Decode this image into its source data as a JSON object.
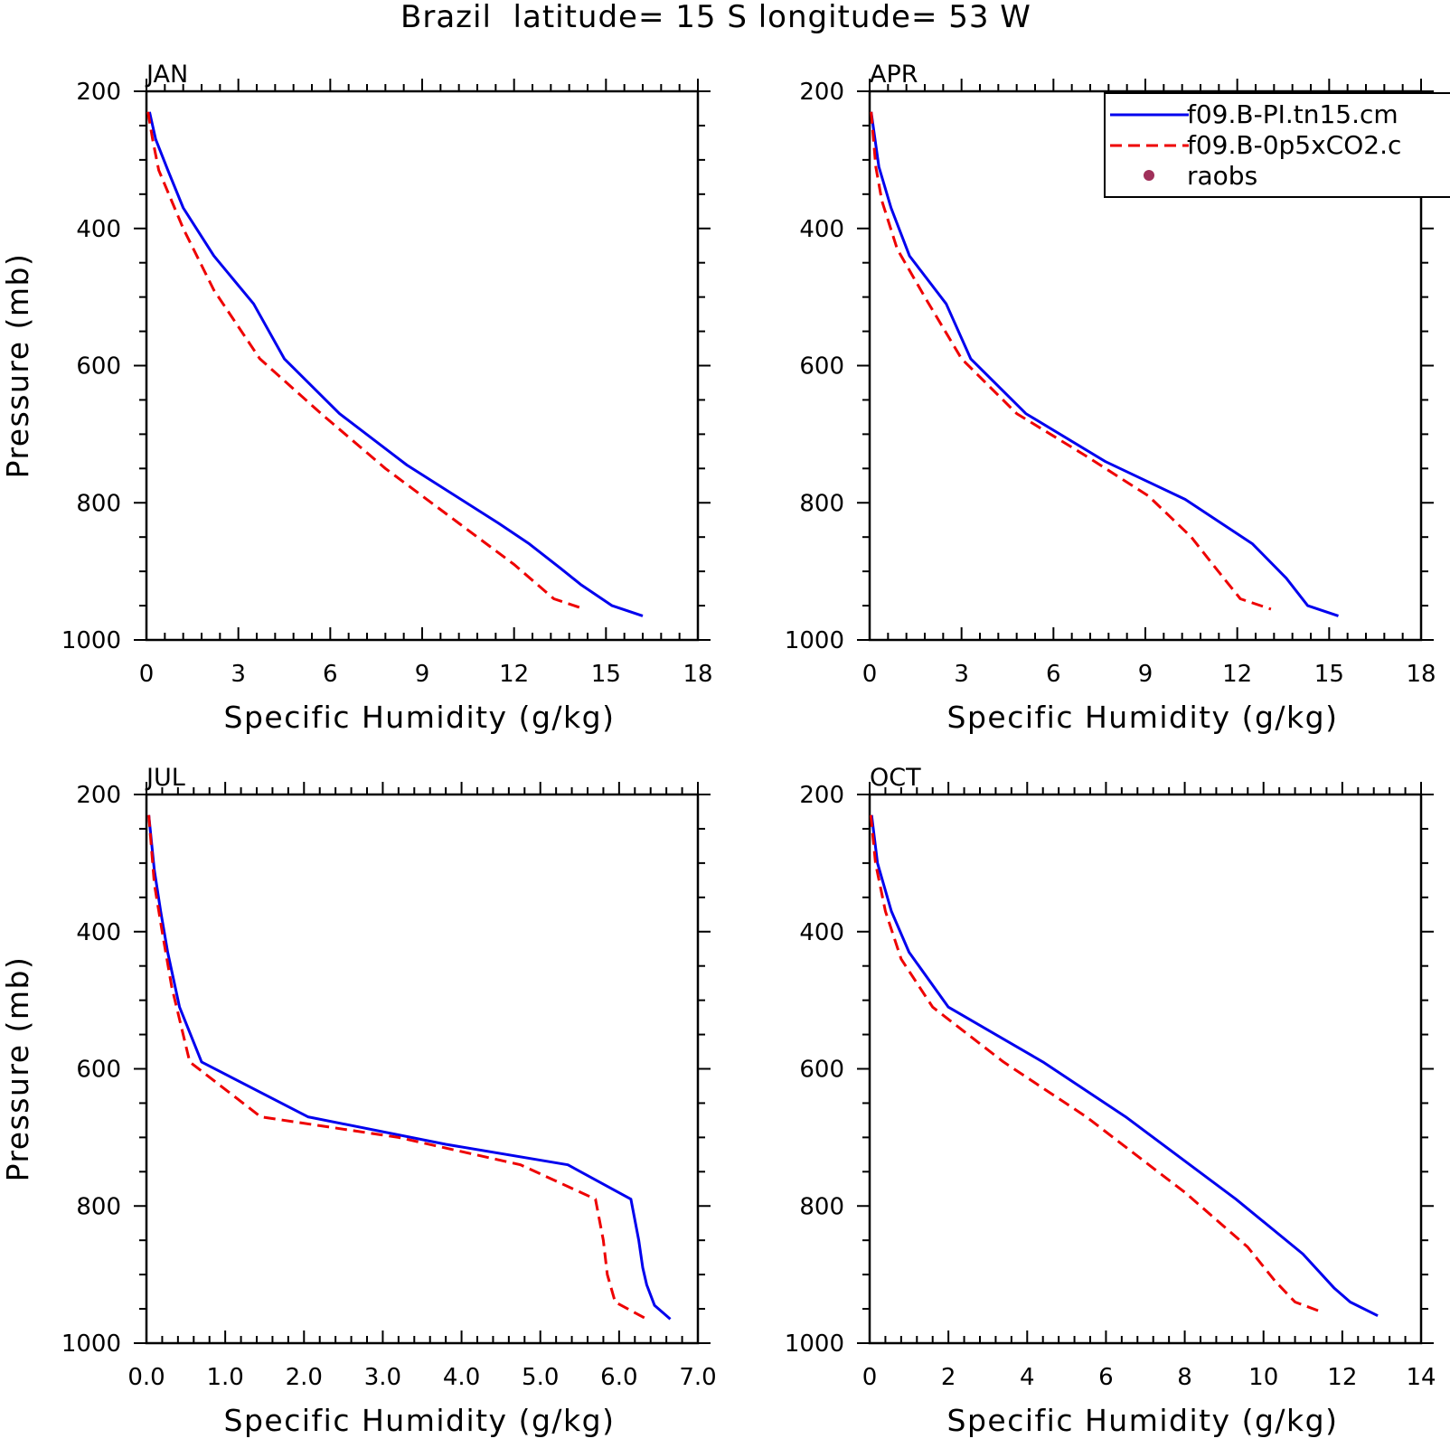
{
  "figure_title": "Brazil  latitude= 15 S longitude= 53 W",
  "legend": {
    "entries": [
      {
        "label": "f09.B-PI.tn15.cm",
        "color": "#0000ee",
        "style": "solid"
      },
      {
        "label": "f09.B-0p5xCO2.c",
        "color": "#ee0000",
        "style": "dashed"
      },
      {
        "label": "raobs",
        "color": "#a0305a",
        "style": "marker"
      }
    ]
  },
  "chart_data": [
    {
      "type": "line",
      "title": "JAN",
      "xlabel": "Specific Humidity (g/kg)",
      "ylabel": "Pressure (mb)",
      "xlim": [
        0,
        18
      ],
      "ylim": [
        200,
        1000
      ],
      "y_inverted": true,
      "xticks": [
        "0",
        "3",
        "6",
        "9",
        "12",
        "15",
        "18"
      ],
      "yticks": [
        "200",
        "400",
        "600",
        "800",
        "1000"
      ],
      "series": [
        {
          "name": "f09.B-PI.tn15.cm",
          "points": [
            [
              0.1,
              230
            ],
            [
              0.3,
              270
            ],
            [
              0.7,
              315
            ],
            [
              1.2,
              370
            ],
            [
              2.2,
              440
            ],
            [
              3.5,
              510
            ],
            [
              4.5,
              590
            ],
            [
              6.3,
              670
            ],
            [
              8.5,
              745
            ],
            [
              11.5,
              830
            ],
            [
              12.5,
              860
            ],
            [
              13.5,
              895
            ],
            [
              14.2,
              920
            ],
            [
              15.2,
              950
            ],
            [
              16.2,
              965
            ]
          ]
        },
        {
          "name": "f09.B-0p5xCO2.c",
          "points": [
            [
              0.05,
              230
            ],
            [
              0.2,
              270
            ],
            [
              0.4,
              315
            ],
            [
              1.2,
              400
            ],
            [
              2.2,
              490
            ],
            [
              3.7,
              590
            ],
            [
              5.7,
              670
            ],
            [
              7.8,
              750
            ],
            [
              10.2,
              830
            ],
            [
              12.0,
              890
            ],
            [
              13.3,
              940
            ],
            [
              14.3,
              955
            ]
          ]
        }
      ]
    },
    {
      "type": "line",
      "title": "APR",
      "xlabel": "Specific Humidity (g/kg)",
      "ylabel": "",
      "xlim": [
        0,
        18
      ],
      "ylim": [
        200,
        1000
      ],
      "y_inverted": true,
      "xticks": [
        "0",
        "3",
        "6",
        "9",
        "12",
        "15",
        "18"
      ],
      "yticks": [
        "200",
        "400",
        "600",
        "800",
        "1000"
      ],
      "series": [
        {
          "name": "f09.B-PI.tn15.cm",
          "points": [
            [
              0.05,
              230
            ],
            [
              0.3,
              310
            ],
            [
              0.7,
              370
            ],
            [
              1.3,
              440
            ],
            [
              2.5,
              510
            ],
            [
              3.3,
              590
            ],
            [
              5.1,
              670
            ],
            [
              7.7,
              740
            ],
            [
              10.3,
              795
            ],
            [
              12.5,
              860
            ],
            [
              13.6,
              910
            ],
            [
              14.3,
              950
            ],
            [
              15.3,
              965
            ]
          ]
        },
        {
          "name": "f09.B-0p5xCO2.c",
          "points": [
            [
              0.05,
              230
            ],
            [
              0.2,
              310
            ],
            [
              0.4,
              360
            ],
            [
              0.9,
              430
            ],
            [
              1.8,
              500
            ],
            [
              3.0,
              590
            ],
            [
              4.8,
              670
            ],
            [
              7.0,
              730
            ],
            [
              9.1,
              790
            ],
            [
              10.5,
              850
            ],
            [
              11.2,
              890
            ],
            [
              12.1,
              940
            ],
            [
              13.1,
              955
            ]
          ]
        }
      ]
    },
    {
      "type": "line",
      "title": "JUL",
      "xlabel": "Specific Humidity (g/kg)",
      "ylabel": "Pressure (mb)",
      "xlim": [
        0,
        7
      ],
      "ylim": [
        200,
        1000
      ],
      "y_inverted": true,
      "xticks": [
        "0.0",
        "1.0",
        "2.0",
        "3.0",
        "4.0",
        "5.0",
        "6.0",
        "7.0"
      ],
      "yticks": [
        "200",
        "400",
        "600",
        "800",
        "1000"
      ],
      "series": [
        {
          "name": "f09.B-PI.tn15.cm",
          "points": [
            [
              0.03,
              230
            ],
            [
              0.1,
              310
            ],
            [
              0.18,
              370
            ],
            [
              0.27,
              430
            ],
            [
              0.42,
              510
            ],
            [
              0.7,
              590
            ],
            [
              2.05,
              670
            ],
            [
              3.8,
              710
            ],
            [
              5.35,
              740
            ],
            [
              6.15,
              790
            ],
            [
              6.25,
              850
            ],
            [
              6.3,
              890
            ],
            [
              6.35,
              915
            ],
            [
              6.45,
              945
            ],
            [
              6.65,
              965
            ]
          ]
        },
        {
          "name": "f09.B-0p5xCO2.c",
          "points": [
            [
              0.03,
              230
            ],
            [
              0.1,
              330
            ],
            [
              0.2,
              400
            ],
            [
              0.32,
              480
            ],
            [
              0.55,
              590
            ],
            [
              1.45,
              670
            ],
            [
              3.2,
              700
            ],
            [
              4.75,
              740
            ],
            [
              5.7,
              790
            ],
            [
              5.8,
              850
            ],
            [
              5.85,
              900
            ],
            [
              5.95,
              940
            ],
            [
              6.35,
              965
            ]
          ]
        }
      ]
    },
    {
      "type": "line",
      "title": "OCT",
      "xlabel": "Specific Humidity (g/kg)",
      "ylabel": "",
      "xlim": [
        0,
        14
      ],
      "ylim": [
        200,
        1000
      ],
      "y_inverted": true,
      "xticks": [
        "0",
        "2",
        "4",
        "6",
        "8",
        "10",
        "12",
        "14"
      ],
      "yticks": [
        "200",
        "400",
        "600",
        "800",
        "1000"
      ],
      "series": [
        {
          "name": "f09.B-PI.tn15.cm",
          "points": [
            [
              0.05,
              230
            ],
            [
              0.2,
              300
            ],
            [
              0.55,
              370
            ],
            [
              1.0,
              430
            ],
            [
              2.0,
              510
            ],
            [
              4.4,
              590
            ],
            [
              6.5,
              670
            ],
            [
              9.3,
              790
            ],
            [
              11.0,
              870
            ],
            [
              11.8,
              920
            ],
            [
              12.2,
              940
            ],
            [
              12.9,
              960
            ]
          ]
        },
        {
          "name": "f09.B-0p5xCO2.c",
          "points": [
            [
              0.03,
              230
            ],
            [
              0.15,
              300
            ],
            [
              0.4,
              370
            ],
            [
              0.8,
              440
            ],
            [
              1.6,
              510
            ],
            [
              3.4,
              590
            ],
            [
              5.5,
              670
            ],
            [
              8.0,
              780
            ],
            [
              9.6,
              860
            ],
            [
              10.3,
              910
            ],
            [
              10.8,
              940
            ],
            [
              11.5,
              955
            ]
          ]
        }
      ]
    }
  ]
}
